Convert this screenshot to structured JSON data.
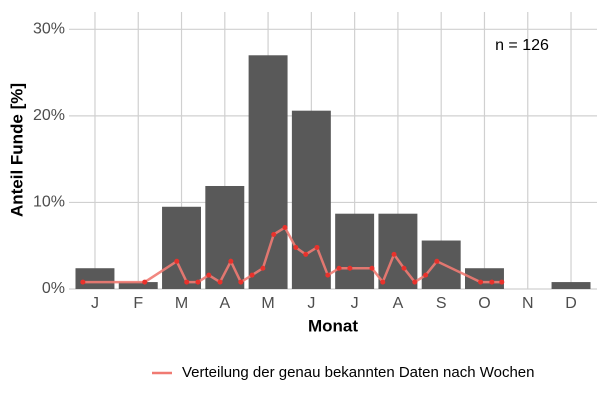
{
  "chart_data": {
    "type": "bar",
    "categories": [
      "J",
      "F",
      "M",
      "A",
      "M",
      "J",
      "J",
      "A",
      "S",
      "O",
      "N",
      "D"
    ],
    "values": [
      2.4,
      0.8,
      9.5,
      11.9,
      27.0,
      20.6,
      8.7,
      8.7,
      5.6,
      2.4,
      0,
      0.8
    ],
    "color": "#595959",
    "xlabel": "Monat",
    "ylabel": "Anteil Funde [%]",
    "annotation": "n = 126",
    "xlim": [
      0.4,
      12.6
    ],
    "ylim": [
      0,
      32
    ],
    "yticks": [
      {
        "value": 0,
        "label": "0%"
      },
      {
        "value": 10,
        "label": "10%"
      },
      {
        "value": 20,
        "label": "20%"
      },
      {
        "value": 30,
        "label": "30%"
      }
    ],
    "grid": true,
    "legend": "bottom",
    "series": [
      {
        "name": "Verteilung der genau bekannten Daten nach Wochen",
        "type": "line",
        "color": "#f07a72",
        "point_color": "#e8322c",
        "x": [
          0.72,
          2.15,
          2.89,
          3.12,
          3.38,
          3.63,
          3.89,
          4.14,
          4.37,
          4.63,
          4.88,
          5.13,
          5.39,
          5.64,
          5.87,
          6.13,
          6.38,
          6.64,
          6.89,
          7.4,
          7.65,
          7.91,
          8.14,
          8.39,
          8.64,
          8.9,
          9.91,
          10.17,
          10.4
        ],
        "values": [
          0.8,
          0.8,
          3.2,
          0.8,
          0.8,
          1.6,
          0.8,
          3.2,
          0.8,
          1.6,
          2.4,
          6.3,
          7.1,
          4.8,
          4.0,
          4.8,
          1.6,
          2.4,
          2.4,
          2.4,
          0.8,
          4.0,
          2.4,
          0.8,
          1.6,
          3.2,
          0.8,
          0.8,
          0.8
        ]
      }
    ]
  }
}
